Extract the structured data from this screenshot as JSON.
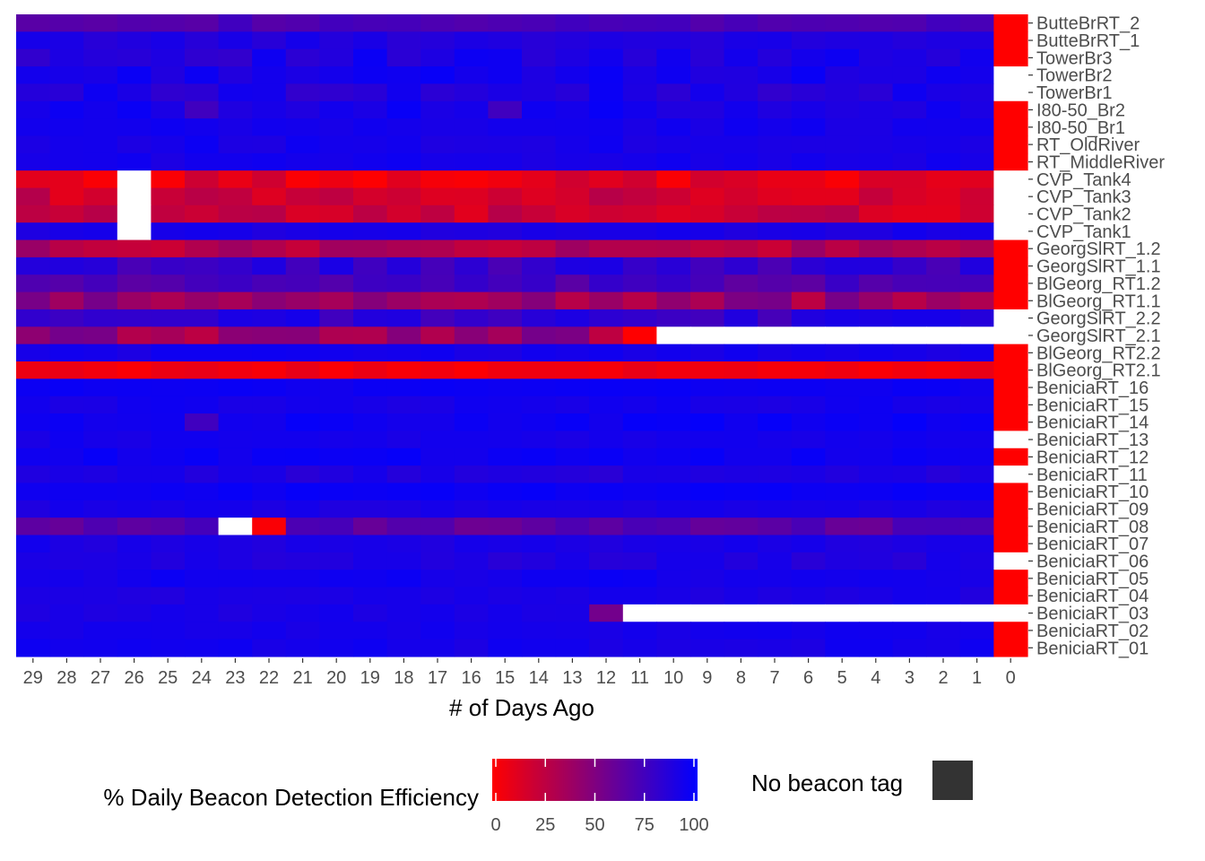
{
  "chart_data": {
    "type": "heatmap",
    "title": "",
    "xlabel": "# of Days Ago",
    "ylabel": "",
    "x_ticks": [
      "29",
      "28",
      "27",
      "26",
      "25",
      "24",
      "23",
      "22",
      "21",
      "20",
      "19",
      "18",
      "17",
      "16",
      "15",
      "14",
      "13",
      "12",
      "11",
      "10",
      "9",
      "8",
      "7",
      "6",
      "5",
      "4",
      "3",
      "2",
      "1",
      "0"
    ],
    "rows": [
      "ButteBrRT_2",
      "ButteBrRT_1",
      "TowerBr3",
      "TowerBr2",
      "TowerBr1",
      "I80-50_Br2",
      "I80-50_Br1",
      "RT_OldRiver",
      "RT_MiddleRiver",
      "CVP_Tank4",
      "CVP_Tank3",
      "CVP_Tank2",
      "CVP_Tank1",
      "GeorgSlRT_1.2",
      "GeorgSlRT_1.1",
      "BlGeorg_RT1.2",
      "BlGeorg_RT1.1",
      "GeorgSlRT_2.2",
      "GeorgSlRT_2.1",
      "BlGeorg_RT2.2",
      "BlGeorg_RT2.1",
      "BeniciaRT_16",
      "BeniciaRT_15",
      "BeniciaRT_14",
      "BeniciaRT_13",
      "BeniciaRT_12",
      "BeniciaRT_11",
      "BeniciaRT_10",
      "BeniciaRT_09",
      "BeniciaRT_08",
      "BeniciaRT_07",
      "BeniciaRT_06",
      "BeniciaRT_05",
      "BeniciaRT_04",
      "BeniciaRT_03",
      "BeniciaRT_02",
      "BeniciaRT_01"
    ],
    "row_base_efficiency": [
      70,
      88,
      88,
      92,
      88,
      92,
      92,
      92,
      92,
      10,
      20,
      20,
      90,
      30,
      80,
      70,
      40,
      82,
      40,
      92,
      5,
      95,
      92,
      95,
      92,
      95,
      88,
      96,
      90,
      65,
      90,
      88,
      93,
      90,
      90,
      92,
      92
    ],
    "row_variation": [
      5,
      4,
      8,
      5,
      8,
      5,
      3,
      4,
      3,
      10,
      10,
      10,
      3,
      10,
      10,
      10,
      15,
      10,
      15,
      3,
      4,
      2,
      3,
      3,
      3,
      3,
      4,
      2,
      3,
      8,
      3,
      4,
      3,
      3,
      3,
      2,
      3
    ],
    "overrides": [
      {
        "row": "CVP_Tank4",
        "day": 26,
        "value": null
      },
      {
        "row": "CVP_Tank3",
        "day": 26,
        "value": null
      },
      {
        "row": "CVP_Tank2",
        "day": 26,
        "value": null
      },
      {
        "row": "CVP_Tank1",
        "day": 26,
        "value": null
      },
      {
        "row": "BeniciaRT_08",
        "day": 23,
        "value": null
      },
      {
        "row": "BeniciaRT_08",
        "day": 22,
        "value": 2
      },
      {
        "row": "GeorgSlRT_2.1",
        "day": 11,
        "value": 0
      },
      {
        "row": "BeniciaRT_03",
        "day": 12,
        "value": 55
      },
      {
        "row": "I80-50_Br2",
        "day": 24,
        "value": 75
      },
      {
        "row": "I80-50_Br2",
        "day": 15,
        "value": 75
      },
      {
        "row": "CVP_Tank4",
        "day": 27,
        "value": 2
      },
      {
        "row": "CVP_Tank4",
        "day": 25,
        "value": 2
      },
      {
        "row": "BeniciaRT_14",
        "day": 24,
        "value": 75
      }
    ],
    "missing_ranges": [
      {
        "row": "GeorgSlRT_2.1",
        "from_day": 10,
        "to_day": 0
      },
      {
        "row": "BeniciaRT_03",
        "from_day": 11,
        "to_day": 0
      }
    ],
    "beacon_tag_column": {
      "day": 0,
      "has_tag": [
        true,
        true,
        true,
        false,
        false,
        true,
        true,
        true,
        true,
        false,
        false,
        false,
        false,
        true,
        true,
        true,
        true,
        false,
        false,
        true,
        true,
        true,
        true,
        true,
        false,
        true,
        false,
        true,
        true,
        true,
        true,
        false,
        true,
        true,
        false,
        true,
        true
      ],
      "color": "#ff0000"
    },
    "color_scale": {
      "min": 0,
      "max": 100,
      "low_color": "#ff0000",
      "high_color": "#0000ff",
      "missing_color": "#ffffff"
    },
    "legend": {
      "title": "% Daily Beacon Detection Efficiency",
      "ticks": [
        "0",
        "25",
        "50",
        "75",
        "100"
      ],
      "no_tag_label": "No beacon tag",
      "no_tag_color": "#333333",
      "placement": "bottom"
    }
  }
}
